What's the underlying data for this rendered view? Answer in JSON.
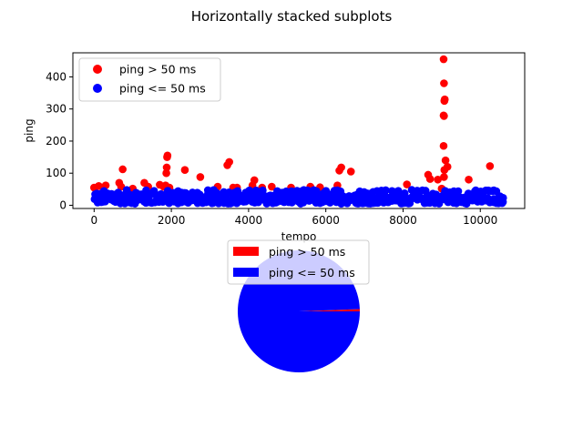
{
  "figure": {
    "title": "Horizontally stacked subplots"
  },
  "chart_data": [
    {
      "type": "scatter",
      "xlabel": "tempo",
      "ylabel": "ping",
      "xlim": [
        -550,
        11150
      ],
      "ylim": [
        -10,
        475
      ],
      "x_ticks": [
        0,
        2000,
        4000,
        6000,
        8000,
        10000
      ],
      "y_ticks": [
        0,
        100,
        200,
        300,
        400
      ],
      "grid": false,
      "legend_position": "top-left",
      "series": [
        {
          "name": "ping > 50 ms",
          "color": "#ff0000",
          "points": [
            [
              0,
              55
            ],
            [
              120,
              60
            ],
            [
              300,
              62
            ],
            [
              650,
              70
            ],
            [
              700,
              58
            ],
            [
              740,
              112
            ],
            [
              1000,
              52
            ],
            [
              1300,
              70
            ],
            [
              1400,
              58
            ],
            [
              1700,
              64
            ],
            [
              1800,
              58
            ],
            [
              1850,
              62
            ],
            [
              1870,
              100
            ],
            [
              1880,
              118
            ],
            [
              1890,
              150
            ],
            [
              1900,
              155
            ],
            [
              1950,
              55
            ],
            [
              2350,
              110
            ],
            [
              2750,
              88
            ],
            [
              3200,
              58
            ],
            [
              3450,
              125
            ],
            [
              3500,
              135
            ],
            [
              3600,
              55
            ],
            [
              3700,
              55
            ],
            [
              4100,
              62
            ],
            [
              4150,
              78
            ],
            [
              4350,
              55
            ],
            [
              4600,
              58
            ],
            [
              5100,
              55
            ],
            [
              5600,
              58
            ],
            [
              5850,
              56
            ],
            [
              6300,
              62
            ],
            [
              6350,
              108
            ],
            [
              6400,
              118
            ],
            [
              6650,
              105
            ],
            [
              8100,
              65
            ],
            [
              8650,
              95
            ],
            [
              8700,
              82
            ],
            [
              8900,
              80
            ],
            [
              9000,
              52
            ],
            [
              9050,
              455
            ],
            [
              9060,
              380
            ],
            [
              9070,
              325
            ],
            [
              9080,
              330
            ],
            [
              9050,
              280
            ],
            [
              9060,
              278
            ],
            [
              9050,
              185
            ],
            [
              9100,
              140
            ],
            [
              9070,
              110
            ],
            [
              9060,
              88
            ],
            [
              9150,
              120
            ],
            [
              9700,
              80
            ],
            [
              10250,
              122
            ]
          ]
        },
        {
          "name": "ping <= 50 ms",
          "color": "#0000ff",
          "band_min": 5,
          "band_max": 48,
          "x_min": 0,
          "x_max": 10600
        }
      ]
    },
    {
      "type": "pie",
      "series": [
        {
          "name": "ping > 50 ms",
          "color": "#ff0000",
          "value": 0.6
        },
        {
          "name": "ping <= 50 ms",
          "color": "#0000ff",
          "value": 99.4
        }
      ],
      "start_angle": 0,
      "legend_position": "top"
    }
  ]
}
